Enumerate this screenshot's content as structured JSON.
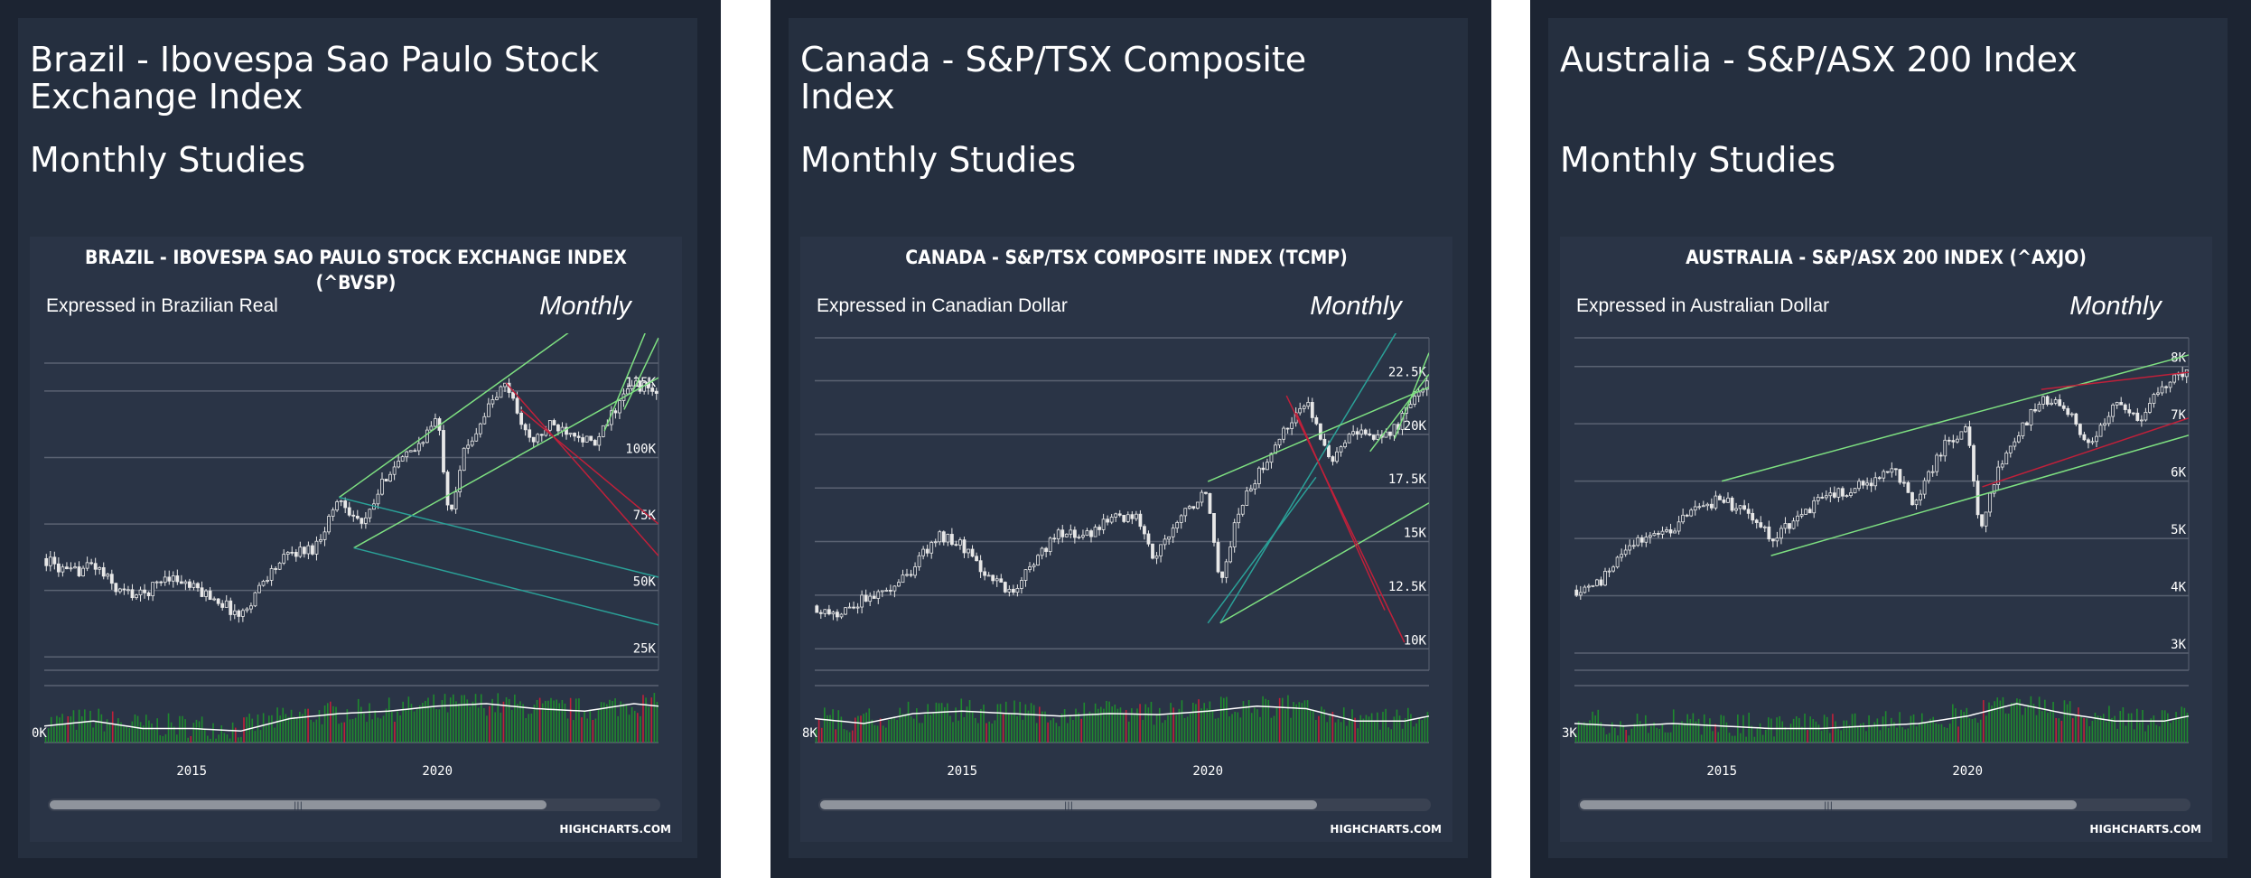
{
  "panels": [
    {
      "heading": "Brazil - Ibovespa Sao Paulo Stock Exchange Index",
      "subheading": "Monthly Studies",
      "chart_title_lines": [
        "BRAZIL - IBOVESPA SAO PAULO STOCK EXCHANGE INDEX",
        "(^BVSP)"
      ],
      "currency_note": "Expressed in Brazilian Real",
      "period_label": "Monthly",
      "credit": "HIGHCHARTS.COM",
      "volume_axis_label": "0K"
    },
    {
      "heading": "Canada - S&P/TSX Composite Index",
      "subheading": "Monthly Studies",
      "chart_title_lines": [
        "CANADA - S&P/TSX COMPOSITE INDEX (TCMP)"
      ],
      "currency_note": "Expressed in Canadian Dollar",
      "period_label": "Monthly",
      "credit": "HIGHCHARTS.COM",
      "volume_axis_label": "8K"
    },
    {
      "heading": "Australia - S&P/ASX 200 Index",
      "subheading": "Monthly Studies",
      "chart_title_lines": [
        "AUSTRALIA - S&P/ASX 200 INDEX (^AXJO)"
      ],
      "currency_note": "Expressed in Australian Dollar",
      "period_label": "Monthly",
      "credit": "HIGHCHARTS.COM",
      "volume_axis_label": "3K"
    }
  ],
  "colors": {
    "candle": "#e8e8e8",
    "green_line": "#7ee081",
    "teal_line": "#2aa198",
    "red_line": "#c0203a",
    "volume_up": "#1f8a2e",
    "volume_down": "#c0203a",
    "volume_avg": "#ffffff",
    "grid": "#5a6272"
  },
  "chart_data": [
    {
      "type": "candlestick",
      "title": "BRAZIL - IBOVESPA SAO PAULO STOCK EXCHANGE INDEX (^BVSP)",
      "x_range": [
        2012.0,
        2024.5
      ],
      "x_ticks": [
        2015,
        2020
      ],
      "y_ticks": [
        {
          "value": 25000,
          "label": "25K"
        },
        {
          "value": 50000,
          "label": "50K"
        },
        {
          "value": 75000,
          "label": "75K"
        },
        {
          "value": 100000,
          "label": "100K"
        },
        {
          "value": 125000,
          "label": "125K"
        }
      ],
      "y_range": [
        20000,
        145000
      ],
      "price_keypoints": [
        [
          2012.0,
          62000
        ],
        [
          2012.5,
          56000
        ],
        [
          2013.0,
          60000
        ],
        [
          2013.5,
          50000
        ],
        [
          2014.0,
          48000
        ],
        [
          2014.5,
          56000
        ],
        [
          2015.0,
          51000
        ],
        [
          2015.5,
          47000
        ],
        [
          2016.0,
          40000
        ],
        [
          2016.5,
          55000
        ],
        [
          2017.0,
          64000
        ],
        [
          2017.5,
          66000
        ],
        [
          2018.0,
          85000
        ],
        [
          2018.5,
          74000
        ],
        [
          2019.0,
          95000
        ],
        [
          2019.5,
          102000
        ],
        [
          2020.0,
          115000
        ],
        [
          2020.25,
          78000
        ],
        [
          2020.5,
          100000
        ],
        [
          2021.0,
          118000
        ],
        [
          2021.4,
          128000
        ],
        [
          2021.9,
          105000
        ],
        [
          2022.3,
          112000
        ],
        [
          2022.8,
          110000
        ],
        [
          2023.2,
          104000
        ],
        [
          2023.6,
          118000
        ],
        [
          2024.0,
          128000
        ],
        [
          2024.5,
          124000
        ]
      ],
      "overlays": [
        {
          "color": "green",
          "points": [
            [
              2018.0,
              85000
            ],
            [
              2022.9,
              150000
            ]
          ]
        },
        {
          "color": "green",
          "points": [
            [
              2018.3,
              66000
            ],
            [
              2024.5,
              130000
            ]
          ]
        },
        {
          "color": "green",
          "points": [
            [
              2023.4,
              110000
            ],
            [
              2024.3,
              150000
            ]
          ]
        },
        {
          "color": "green",
          "points": [
            [
              2023.8,
              118000
            ],
            [
              2024.5,
              145000
            ]
          ]
        },
        {
          "color": "teal",
          "points": [
            [
              2018.0,
              85000
            ],
            [
              2024.5,
              55000
            ]
          ]
        },
        {
          "color": "teal",
          "points": [
            [
              2018.3,
              66000
            ],
            [
              2024.5,
              37000
            ]
          ]
        },
        {
          "color": "red",
          "points": [
            [
              2021.4,
              128000
            ],
            [
              2024.5,
              63000
            ]
          ]
        },
        {
          "color": "red",
          "points": [
            [
              2021.7,
              118000
            ],
            [
              2024.5,
              75000
            ]
          ]
        }
      ],
      "volume_avg_keypoints": [
        [
          2012,
          0.15
        ],
        [
          2013,
          0.25
        ],
        [
          2014,
          0.1
        ],
        [
          2015,
          0.1
        ],
        [
          2016,
          0.05
        ],
        [
          2017,
          0.3
        ],
        [
          2018,
          0.4
        ],
        [
          2019,
          0.45
        ],
        [
          2020,
          0.55
        ],
        [
          2021,
          0.6
        ],
        [
          2022,
          0.5
        ],
        [
          2023,
          0.45
        ],
        [
          2024,
          0.6
        ],
        [
          2024.5,
          0.55
        ]
      ]
    },
    {
      "type": "candlestick",
      "title": "CANADA - S&P/TSX COMPOSITE INDEX (TCMP)",
      "x_range": [
        2012.0,
        2024.5
      ],
      "x_ticks": [
        2015,
        2020
      ],
      "y_ticks": [
        {
          "value": 10000,
          "label": "10K"
        },
        {
          "value": 12500,
          "label": "12.5K"
        },
        {
          "value": 15000,
          "label": "15K"
        },
        {
          "value": 17500,
          "label": "17.5K"
        },
        {
          "value": 20000,
          "label": "20K"
        },
        {
          "value": 22500,
          "label": "22.5K"
        }
      ],
      "y_range": [
        9000,
        24500
      ],
      "price_keypoints": [
        [
          2012.0,
          12000
        ],
        [
          2012.5,
          11500
        ],
        [
          2013.0,
          12300
        ],
        [
          2013.5,
          12500
        ],
        [
          2014.0,
          13800
        ],
        [
          2014.5,
          15300
        ],
        [
          2015.0,
          14800
        ],
        [
          2015.5,
          13500
        ],
        [
          2016.0,
          12500
        ],
        [
          2016.5,
          14300
        ],
        [
          2017.0,
          15500
        ],
        [
          2017.5,
          15200
        ],
        [
          2018.0,
          16000
        ],
        [
          2018.5,
          16300
        ],
        [
          2018.9,
          14300
        ],
        [
          2019.5,
          16400
        ],
        [
          2020.0,
          17300
        ],
        [
          2020.25,
          13000
        ],
        [
          2020.6,
          16300
        ],
        [
          2021.0,
          18000
        ],
        [
          2021.5,
          20000
        ],
        [
          2022.0,
          21500
        ],
        [
          2022.5,
          18500
        ],
        [
          2022.9,
          20300
        ],
        [
          2023.5,
          19800
        ],
        [
          2023.9,
          20500
        ],
        [
          2024.5,
          22700
        ]
      ],
      "overlays": [
        {
          "color": "teal",
          "points": [
            [
              2020.25,
              11200
            ],
            [
              2023.9,
              25000
            ]
          ]
        },
        {
          "color": "teal",
          "points": [
            [
              2020.0,
              11200
            ],
            [
              2022.2,
              18000
            ]
          ]
        },
        {
          "color": "green",
          "points": [
            [
              2020.0,
              17800
            ],
            [
              2024.5,
              22200
            ]
          ]
        },
        {
          "color": "green",
          "points": [
            [
              2020.25,
              11200
            ],
            [
              2024.5,
              16800
            ]
          ]
        },
        {
          "color": "green",
          "points": [
            [
              2023.3,
              19200
            ],
            [
              2024.5,
              22800
            ]
          ]
        },
        {
          "color": "green",
          "points": [
            [
              2023.8,
              19800
            ],
            [
              2024.5,
              23800
            ]
          ]
        },
        {
          "color": "red",
          "points": [
            [
              2021.6,
              21800
            ],
            [
              2024.0,
              10300
            ]
          ]
        },
        {
          "color": "red",
          "points": [
            [
              2021.8,
              21000
            ],
            [
              2023.6,
              11800
            ]
          ]
        }
      ],
      "volume_avg_keypoints": [
        [
          2012,
          0.3
        ],
        [
          2013,
          0.2
        ],
        [
          2014,
          0.4
        ],
        [
          2015,
          0.45
        ],
        [
          2016,
          0.4
        ],
        [
          2017,
          0.35
        ],
        [
          2018,
          0.4
        ],
        [
          2019,
          0.38
        ],
        [
          2020,
          0.45
        ],
        [
          2021,
          0.55
        ],
        [
          2022,
          0.5
        ],
        [
          2023,
          0.25
        ],
        [
          2024,
          0.25
        ],
        [
          2024.5,
          0.35
        ]
      ]
    },
    {
      "type": "candlestick",
      "title": "AUSTRALIA - S&P/ASX 200 INDEX (^AXJO)",
      "x_range": [
        2012.0,
        2024.5
      ],
      "x_ticks": [
        2015,
        2020
      ],
      "y_ticks": [
        {
          "value": 3000,
          "label": "3K"
        },
        {
          "value": 4000,
          "label": "4K"
        },
        {
          "value": 5000,
          "label": "5K"
        },
        {
          "value": 6000,
          "label": "6K"
        },
        {
          "value": 7000,
          "label": "7K"
        },
        {
          "value": 8000,
          "label": "8K"
        }
      ],
      "y_range": [
        2700,
        8500
      ],
      "price_keypoints": [
        [
          2012.0,
          4100
        ],
        [
          2012.5,
          4200
        ],
        [
          2013.0,
          4800
        ],
        [
          2013.5,
          5000
        ],
        [
          2014.0,
          5200
        ],
        [
          2014.5,
          5500
        ],
        [
          2015.0,
          5700
        ],
        [
          2015.5,
          5400
        ],
        [
          2016.0,
          5000
        ],
        [
          2016.5,
          5300
        ],
        [
          2017.0,
          5700
        ],
        [
          2017.5,
          5800
        ],
        [
          2018.0,
          6000
        ],
        [
          2018.5,
          6200
        ],
        [
          2018.9,
          5600
        ],
        [
          2019.5,
          6600
        ],
        [
          2020.0,
          7000
        ],
        [
          2020.25,
          5100
        ],
        [
          2020.6,
          6100
        ],
        [
          2021.0,
          6800
        ],
        [
          2021.5,
          7400
        ],
        [
          2022.0,
          7300
        ],
        [
          2022.5,
          6600
        ],
        [
          2023.0,
          7400
        ],
        [
          2023.5,
          7100
        ],
        [
          2024.0,
          7700
        ],
        [
          2024.5,
          8000
        ]
      ],
      "overlays": [
        {
          "color": "green",
          "points": [
            [
              2015.0,
              6000
            ],
            [
              2024.5,
              8200
            ]
          ]
        },
        {
          "color": "green",
          "points": [
            [
              2016.0,
              4700
            ],
            [
              2024.5,
              6800
            ]
          ]
        },
        {
          "color": "red",
          "points": [
            [
              2020.3,
              5900
            ],
            [
              2024.5,
              7100
            ]
          ]
        },
        {
          "color": "red",
          "points": [
            [
              2021.5,
              7600
            ],
            [
              2024.5,
              7900
            ]
          ]
        }
      ],
      "volume_avg_keypoints": [
        [
          2012,
          0.2
        ],
        [
          2013,
          0.15
        ],
        [
          2014,
          0.2
        ],
        [
          2015,
          0.15
        ],
        [
          2016,
          0.1
        ],
        [
          2017,
          0.1
        ],
        [
          2018,
          0.15
        ],
        [
          2019,
          0.2
        ],
        [
          2020,
          0.35
        ],
        [
          2021,
          0.6
        ],
        [
          2022,
          0.4
        ],
        [
          2023,
          0.25
        ],
        [
          2024,
          0.25
        ],
        [
          2024.5,
          0.35
        ]
      ]
    }
  ]
}
